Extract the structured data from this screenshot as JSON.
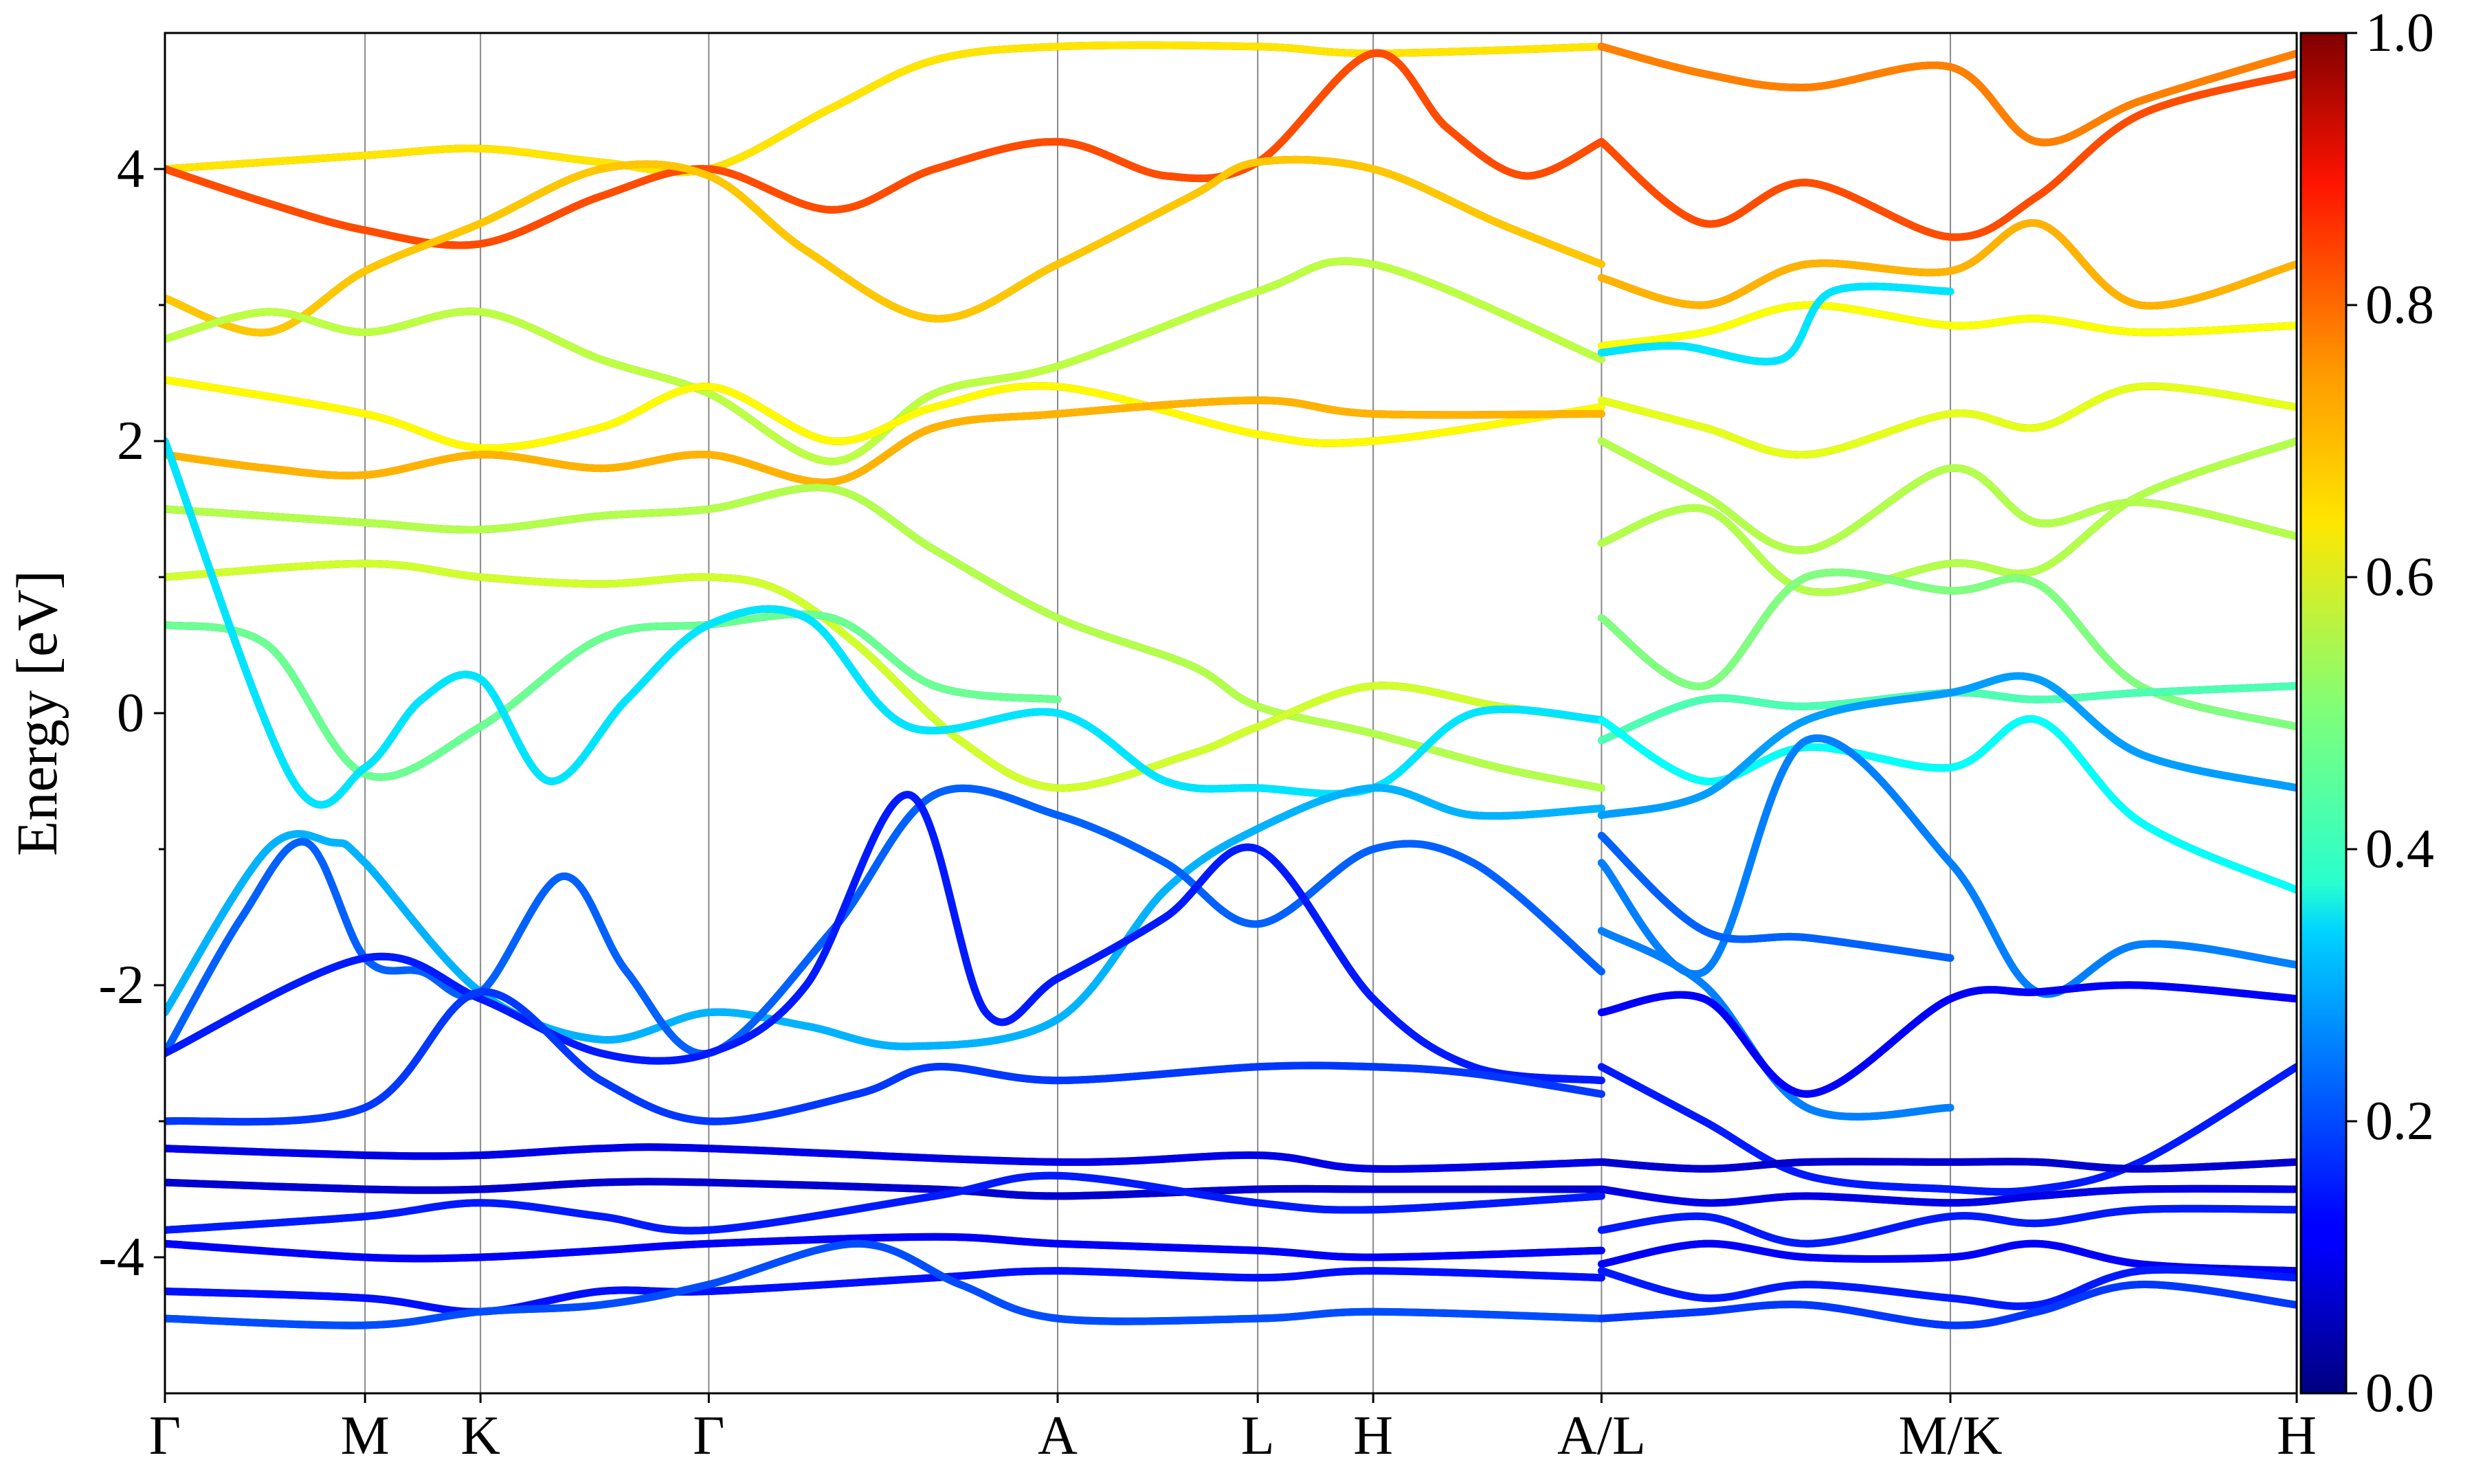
{
  "chart_data": {
    "type": "line",
    "title": "",
    "ylabel": "Energy [eV]",
    "xlabel": "",
    "ylim": [
      -5,
      5
    ],
    "y_ticks": [
      "-4",
      "-2",
      "0",
      "2",
      "4"
    ],
    "kpoints": [
      {
        "label": "Γ",
        "x": 0
      },
      {
        "label": "M",
        "x": 0.78
      },
      {
        "label": "K",
        "x": 1.23
      },
      {
        "label": "Γ",
        "x": 2.12
      },
      {
        "label": "A",
        "x": 3.48
      },
      {
        "label": "L",
        "x": 4.26
      },
      {
        "label": "H",
        "x": 4.71
      },
      {
        "label": "A/L",
        "x": 5.6
      },
      {
        "label": "M/K",
        "x": 6.96
      },
      {
        "label": "H",
        "x": 8.31
      }
    ],
    "xlim": [
      0,
      8.31
    ],
    "colorbar": {
      "colormap": "jet",
      "range": [
        0,
        1
      ],
      "ticks": [
        "0.0",
        "0.2",
        "0.4",
        "0.6",
        "0.8",
        "1.0"
      ]
    },
    "series": [
      {
        "w": 0.65,
        "x": [
          0,
          0.78,
          1.23,
          1.7,
          2.12,
          2.6,
          3.0,
          3.48,
          4.26,
          4.71,
          5.6
        ],
        "y": [
          4.0,
          4.1,
          4.15,
          4.05,
          4.0,
          4.45,
          4.8,
          4.9,
          4.9,
          4.85,
          4.9
        ]
      },
      {
        "w": 0.8,
        "x": [
          0,
          0.4,
          0.78,
          1.23,
          1.7,
          2.12,
          2.6,
          3.0,
          3.48,
          3.9,
          4.26,
          4.71,
          5.0,
          5.3,
          5.6
        ],
        "y": [
          4.0,
          3.75,
          3.55,
          3.45,
          3.8,
          4.0,
          3.7,
          4.0,
          4.2,
          3.95,
          4.05,
          4.85,
          4.3,
          3.95,
          4.2
        ]
      },
      {
        "w": 0.68,
        "x": [
          0,
          0.4,
          0.78,
          1.23,
          1.7,
          2.12,
          2.5,
          3.0,
          3.48,
          4.0,
          4.26,
          4.71,
          5.2,
          5.6
        ],
        "y": [
          3.05,
          2.8,
          3.25,
          3.6,
          4.0,
          3.95,
          3.4,
          2.9,
          3.3,
          3.8,
          4.05,
          4.0,
          3.6,
          3.3
        ]
      },
      {
        "w": 0.56,
        "x": [
          0,
          0.4,
          0.78,
          1.23,
          1.7,
          2.12,
          2.6,
          3.0,
          3.48,
          4.26,
          4.71,
          5.6
        ],
        "y": [
          2.75,
          2.95,
          2.8,
          2.95,
          2.6,
          2.35,
          1.85,
          2.35,
          2.55,
          3.1,
          3.3,
          2.6
        ]
      },
      {
        "w": 0.63,
        "x": [
          0,
          0.78,
          1.23,
          1.7,
          2.12,
          2.6,
          3.0,
          3.48,
          4.26,
          4.71,
          5.6
        ],
        "y": [
          2.45,
          2.2,
          1.95,
          2.1,
          2.4,
          2.0,
          2.25,
          2.4,
          2.05,
          2.0,
          2.25
        ]
      },
      {
        "w": 0.7,
        "x": [
          0,
          0.4,
          0.78,
          1.23,
          1.7,
          2.12,
          2.6,
          3.0,
          3.48,
          4.26,
          4.71,
          5.6
        ],
        "y": [
          1.9,
          1.8,
          1.75,
          1.9,
          1.8,
          1.9,
          1.7,
          2.1,
          2.2,
          2.3,
          2.2,
          2.2
        ]
      },
      {
        "w": 0.55,
        "x": [
          0,
          0.78,
          1.23,
          1.7,
          2.12,
          2.6,
          3.0,
          3.48,
          4.0,
          4.26,
          4.71,
          5.2,
          5.6
        ],
        "y": [
          1.5,
          1.4,
          1.35,
          1.45,
          1.5,
          1.65,
          1.2,
          0.7,
          0.35,
          0.05,
          -0.15,
          -0.4,
          -0.55
        ]
      },
      {
        "w": 0.58,
        "x": [
          0,
          0.78,
          1.23,
          1.7,
          2.12,
          2.4,
          2.7,
          3.1,
          3.48,
          4.0,
          4.26,
          4.71,
          5.2,
          5.6
        ],
        "y": [
          1.0,
          1.1,
          1.0,
          0.95,
          1.0,
          0.9,
          0.5,
          -0.2,
          -0.55,
          -0.3,
          -0.1,
          0.2,
          0.05,
          -0.05
        ]
      },
      {
        "w": 0.48,
        "x": [
          0,
          0.4,
          0.78,
          1.23,
          1.7,
          2.12,
          2.6,
          3.0,
          3.48
        ],
        "y": [
          0.65,
          0.5,
          -0.45,
          -0.1,
          0.55,
          0.65,
          0.7,
          0.2,
          0.1
        ]
      },
      {
        "w": 0.35,
        "x": [
          0,
          0.5,
          0.78,
          1.0,
          1.23,
          1.5,
          1.8,
          2.12,
          2.5,
          2.9,
          3.48,
          3.9,
          4.26,
          4.71,
          5.1,
          5.6
        ],
        "y": [
          2.0,
          -0.5,
          -0.4,
          0.1,
          0.25,
          -0.5,
          0.1,
          0.65,
          0.7,
          -0.1,
          0.0,
          -0.5,
          -0.55,
          -0.55,
          0.0,
          -0.05
        ]
      },
      {
        "w": 0.3,
        "x": [
          0,
          0.4,
          0.65,
          0.78,
          1.23,
          1.7,
          2.12,
          2.5,
          2.9,
          3.48,
          3.9,
          4.26,
          4.71,
          5.1,
          5.6
        ],
        "y": [
          -2.2,
          -1.0,
          -0.95,
          -1.1,
          -2.05,
          -2.4,
          -2.2,
          -2.3,
          -2.45,
          -2.25,
          -1.3,
          -0.85,
          -0.55,
          -0.75,
          -0.7
        ]
      },
      {
        "w": 0.22,
        "x": [
          0,
          0.3,
          0.55,
          0.78,
          1.0,
          1.23,
          1.55,
          1.8,
          2.12,
          2.6,
          3.0,
          3.48,
          3.9,
          4.26,
          4.71,
          5.1,
          5.6
        ],
        "y": [
          -2.5,
          -1.5,
          -0.95,
          -1.8,
          -1.9,
          -2.05,
          -1.2,
          -1.9,
          -2.5,
          -1.6,
          -0.6,
          -0.75,
          -1.1,
          -1.55,
          -1.0,
          -1.1,
          -1.9
        ]
      },
      {
        "w": 0.15,
        "x": [
          0,
          0.78,
          1.23,
          1.7,
          2.12,
          2.5,
          2.9,
          3.2,
          3.48,
          3.9,
          4.26,
          4.71,
          5.1,
          5.6
        ],
        "y": [
          -2.5,
          -1.8,
          -2.1,
          -2.5,
          -2.5,
          -2.0,
          -0.6,
          -2.2,
          -1.95,
          -1.5,
          -1.0,
          -2.1,
          -2.6,
          -2.7
        ]
      },
      {
        "w": 0.18,
        "x": [
          0,
          0.78,
          1.23,
          1.7,
          2.12,
          2.7,
          3.0,
          3.48,
          4.26,
          4.71,
          5.1,
          5.6
        ],
        "y": [
          -3.0,
          -2.9,
          -2.05,
          -2.7,
          -3.0,
          -2.8,
          -2.6,
          -2.7,
          -2.6,
          -2.6,
          -2.65,
          -2.8
        ]
      },
      {
        "w": 0.1,
        "x": [
          0,
          0.78,
          1.23,
          1.7,
          2.12,
          3.48,
          4.26,
          4.71,
          5.6
        ],
        "y": [
          -3.2,
          -3.25,
          -3.25,
          -3.2,
          -3.2,
          -3.3,
          -3.25,
          -3.35,
          -3.3
        ]
      },
      {
        "w": 0.08,
        "x": [
          0,
          0.78,
          1.23,
          1.7,
          2.12,
          3.0,
          3.48,
          4.26,
          4.71,
          5.6
        ],
        "y": [
          -3.45,
          -3.5,
          -3.5,
          -3.45,
          -3.45,
          -3.5,
          -3.55,
          -3.5,
          -3.5,
          -3.5
        ]
      },
      {
        "w": 0.15,
        "x": [
          0,
          0.78,
          1.23,
          1.7,
          2.12,
          3.0,
          3.48,
          4.26,
          4.71,
          5.6
        ],
        "y": [
          -3.8,
          -3.7,
          -3.6,
          -3.7,
          -3.8,
          -3.55,
          -3.4,
          -3.6,
          -3.65,
          -3.55
        ]
      },
      {
        "w": 0.12,
        "x": [
          0,
          0.78,
          1.23,
          1.7,
          2.12,
          3.0,
          3.48,
          4.26,
          4.71,
          5.6
        ],
        "y": [
          -3.9,
          -4.0,
          -4.0,
          -3.95,
          -3.9,
          -3.85,
          -3.9,
          -3.95,
          -4.0,
          -3.95
        ]
      },
      {
        "w": 0.14,
        "x": [
          0,
          0.78,
          1.23,
          1.7,
          2.12,
          3.0,
          3.48,
          4.26,
          4.71,
          5.6
        ],
        "y": [
          -4.25,
          -4.3,
          -4.4,
          -4.25,
          -4.25,
          -4.15,
          -4.1,
          -4.15,
          -4.1,
          -4.15
        ]
      },
      {
        "w": 0.2,
        "x": [
          0,
          0.78,
          1.23,
          1.7,
          2.12,
          2.7,
          3.1,
          3.48,
          4.26,
          4.71,
          5.6
        ],
        "y": [
          -4.45,
          -4.5,
          -4.4,
          -4.35,
          -4.2,
          -3.9,
          -4.2,
          -4.45,
          -4.45,
          -4.4,
          -4.45
        ]
      },
      {
        "w": 0.75,
        "x": [
          5.6,
          6.0,
          6.4,
          6.96,
          7.3,
          7.7,
          8.31
        ],
        "y": [
          4.9,
          4.7,
          4.6,
          4.75,
          4.2,
          4.5,
          4.85
        ]
      },
      {
        "w": 0.8,
        "x": [
          5.6,
          6.0,
          6.4,
          6.96,
          7.3,
          7.7,
          8.31
        ],
        "y": [
          4.2,
          3.6,
          3.9,
          3.5,
          3.8,
          4.4,
          4.7
        ]
      },
      {
        "w": 0.7,
        "x": [
          5.6,
          6.0,
          6.4,
          6.96,
          7.3,
          7.7,
          8.31
        ],
        "y": [
          3.2,
          3.0,
          3.3,
          3.25,
          3.6,
          3.0,
          3.3
        ]
      },
      {
        "w": 0.62,
        "x": [
          5.6,
          6.0,
          6.4,
          6.96,
          7.3,
          7.7,
          8.31
        ],
        "y": [
          2.7,
          2.8,
          3.0,
          2.85,
          2.9,
          2.8,
          2.85
        ]
      },
      {
        "w": 0.35,
        "x": [
          5.6,
          5.9,
          6.3,
          6.5,
          6.96
        ],
        "y": [
          2.65,
          2.7,
          2.6,
          3.1,
          3.1
        ]
      },
      {
        "w": 0.6,
        "x": [
          5.6,
          6.0,
          6.4,
          6.96,
          7.3,
          7.7,
          8.31
        ],
        "y": [
          2.3,
          2.1,
          1.9,
          2.2,
          2.1,
          2.4,
          2.25
        ]
      },
      {
        "w": 0.55,
        "x": [
          5.6,
          6.0,
          6.4,
          6.96,
          7.3,
          7.7,
          8.31
        ],
        "y": [
          2.0,
          1.6,
          1.2,
          1.8,
          1.4,
          1.55,
          1.3
        ]
      },
      {
        "w": 0.55,
        "x": [
          5.6,
          6.0,
          6.4,
          6.96,
          7.3,
          7.7,
          8.31
        ],
        "y": [
          1.25,
          1.5,
          0.9,
          1.1,
          1.05,
          1.6,
          2.0
        ]
      },
      {
        "w": 0.5,
        "x": [
          5.6,
          6.0,
          6.4,
          6.96,
          7.3,
          7.7,
          8.31
        ],
        "y": [
          0.7,
          0.2,
          1.0,
          0.9,
          0.95,
          0.2,
          -0.1
        ]
      },
      {
        "w": 0.45,
        "x": [
          5.6,
          6.0,
          6.4,
          6.96,
          7.3,
          7.7,
          8.31
        ],
        "y": [
          -0.2,
          0.1,
          0.05,
          0.15,
          0.1,
          0.15,
          0.2
        ]
      },
      {
        "w": 0.38,
        "x": [
          5.6,
          6.0,
          6.4,
          6.96,
          7.3,
          7.7,
          8.31
        ],
        "y": [
          -0.05,
          -0.5,
          -0.25,
          -0.4,
          -0.05,
          -0.8,
          -1.3
        ]
      },
      {
        "w": 0.28,
        "x": [
          5.6,
          6.0,
          6.4,
          6.96,
          7.3,
          7.7,
          8.31
        ],
        "y": [
          -0.75,
          -0.6,
          -0.05,
          0.15,
          0.25,
          -0.3,
          -0.55
        ]
      },
      {
        "w": 0.25,
        "x": [
          5.6,
          6.0,
          6.4,
          6.96,
          7.3,
          7.7,
          8.31
        ],
        "y": [
          -1.1,
          -1.9,
          -0.2,
          -1.1,
          -2.05,
          -1.7,
          -1.85
        ]
      },
      {
        "w": 0.22,
        "x": [
          5.6,
          6.0,
          6.4,
          6.96
        ],
        "y": [
          -0.9,
          -1.6,
          -1.65,
          -1.8
        ]
      },
      {
        "w": 0.25,
        "x": [
          5.6,
          6.0,
          6.4,
          6.96
        ],
        "y": [
          -1.6,
          -2.0,
          -2.9,
          -2.9
        ]
      },
      {
        "w": 0.12,
        "x": [
          5.6,
          6.0,
          6.4,
          6.96,
          7.3,
          7.7,
          8.31
        ],
        "y": [
          -2.2,
          -2.1,
          -2.8,
          -2.1,
          -2.05,
          -2.0,
          -2.1
        ]
      },
      {
        "w": 0.15,
        "x": [
          5.6,
          6.0,
          6.4,
          6.96,
          7.3,
          7.7,
          8.31
        ],
        "y": [
          -2.6,
          -3.0,
          -3.4,
          -3.5,
          -3.5,
          -3.3,
          -2.6
        ]
      },
      {
        "w": 0.08,
        "x": [
          5.6,
          6.0,
          6.4,
          6.96,
          7.3,
          7.7,
          8.31
        ],
        "y": [
          -3.3,
          -3.35,
          -3.3,
          -3.3,
          -3.3,
          -3.35,
          -3.3
        ]
      },
      {
        "w": 0.1,
        "x": [
          5.6,
          6.0,
          6.4,
          6.96,
          7.3,
          7.7,
          8.31
        ],
        "y": [
          -3.5,
          -3.6,
          -3.55,
          -3.6,
          -3.55,
          -3.5,
          -3.5
        ]
      },
      {
        "w": 0.15,
        "x": [
          5.6,
          6.0,
          6.4,
          6.96,
          7.3,
          7.7,
          8.31
        ],
        "y": [
          -3.8,
          -3.7,
          -3.9,
          -3.7,
          -3.75,
          -3.65,
          -3.65
        ]
      },
      {
        "w": 0.12,
        "x": [
          5.6,
          6.0,
          6.4,
          6.96,
          7.3,
          7.7,
          8.31
        ],
        "y": [
          -4.05,
          -3.9,
          -4.0,
          -4.0,
          -3.9,
          -4.05,
          -4.1
        ]
      },
      {
        "w": 0.15,
        "x": [
          5.6,
          6.0,
          6.4,
          6.96,
          7.3,
          7.7,
          8.31
        ],
        "y": [
          -4.1,
          -4.3,
          -4.2,
          -4.3,
          -4.35,
          -4.1,
          -4.15
        ]
      },
      {
        "w": 0.18,
        "x": [
          5.6,
          6.0,
          6.4,
          6.96,
          7.3,
          7.7,
          8.31
        ],
        "y": [
          -4.45,
          -4.4,
          -4.35,
          -4.5,
          -4.4,
          -4.2,
          -4.35
        ]
      }
    ]
  }
}
